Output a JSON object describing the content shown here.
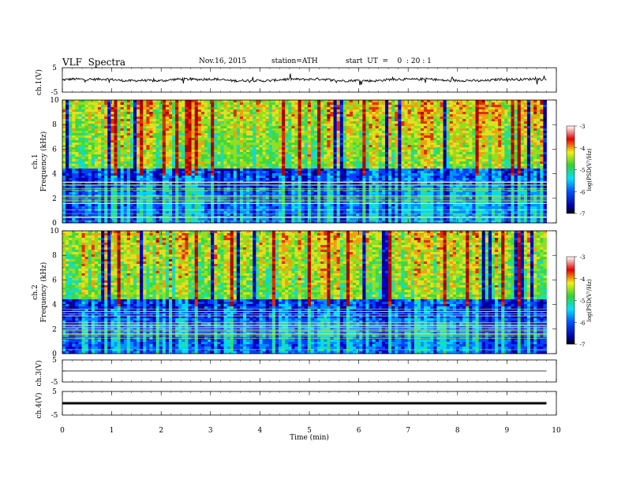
{
  "header": {
    "title": "VLF  Spectra",
    "date": "Nov.16, 2015",
    "station": "station=ATH",
    "start": "start  UT  =    0  : 20 : 1"
  },
  "chart_data": [
    {
      "type": "line",
      "panel": "ch1-waveform",
      "ylabel": "ch.1(V)",
      "ylim": [
        -5,
        5
      ],
      "yticks": [
        "5",
        "-5"
      ],
      "x_range_min": [
        0,
        9.8
      ],
      "baseline_value": 0,
      "noise_amplitude": 0.5
    },
    {
      "type": "heatmap",
      "panel": "ch1-spectrogram",
      "ylabel": "ch.1\nFrequency (kHz)",
      "ylim": [
        0,
        10
      ],
      "yticks": [
        "0",
        "2",
        "4",
        "6",
        "8",
        "10"
      ],
      "colorbar": {
        "label": "log(PSD(V²/Hz)",
        "range": [
          -7,
          -3
        ],
        "ticks": [
          "-3",
          "-4",
          "-5",
          "-6",
          "-7"
        ]
      }
    },
    {
      "type": "heatmap",
      "panel": "ch2-spectrogram",
      "ylabel": "ch.2\nFrequency (kHz)",
      "ylim": [
        0,
        10
      ],
      "yticks": [
        "0",
        "2",
        "4",
        "6",
        "8",
        "10"
      ],
      "colorbar": {
        "label": "log(PSD(V²/Hz)",
        "range": [
          -7,
          -3
        ],
        "ticks": [
          "-3",
          "-4",
          "-5",
          "-6",
          "-7"
        ]
      }
    },
    {
      "type": "line",
      "panel": "ch3-waveform",
      "ylabel": "ch.3(V)",
      "ylim": [
        -5,
        5
      ],
      "yticks": [
        "5",
        "-5"
      ],
      "baseline_value": 0
    },
    {
      "type": "line",
      "panel": "ch4-waveform",
      "ylabel": "ch.4(V)",
      "ylim": [
        -5,
        5
      ],
      "yticks": [
        "5",
        "-5"
      ],
      "baseline_value": 0
    }
  ],
  "xaxis": {
    "label": "Time  (min)",
    "range": [
      0,
      10
    ],
    "ticks": [
      "0",
      "1",
      "2",
      "3",
      "4",
      "5",
      "6",
      "7",
      "8",
      "9",
      "10"
    ]
  },
  "colors": {
    "min": "#000000",
    "low": "#0000c8",
    "mid": "#00e0ff",
    "green": "#32d232",
    "yellow": "#f0f014",
    "red": "#e60000",
    "max": "#ffffff"
  }
}
